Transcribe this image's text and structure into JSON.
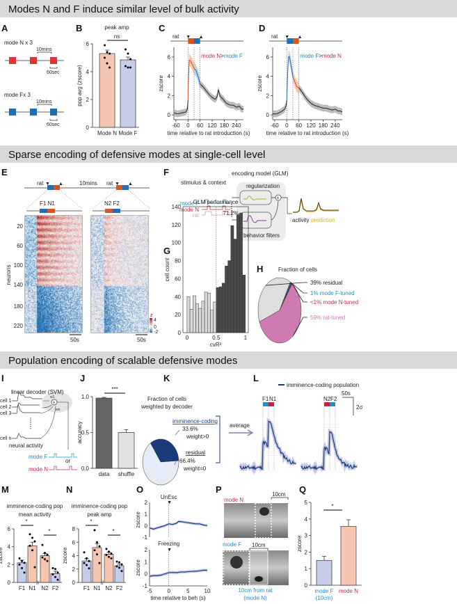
{
  "headers": [
    "Modes N and F induce similar level of bulk activity",
    "Sparse encoding of defensive modes at single-cell level",
    "Population encoding of scalable defensive modes"
  ],
  "panel_labels": [
    "A",
    "B",
    "C",
    "D",
    "E",
    "F",
    "G",
    "H",
    "I",
    "J",
    "K",
    "L",
    "M",
    "N",
    "O",
    "P",
    "Q"
  ],
  "colors": {
    "modeN": "#d9541e",
    "modeF": "#1f6fb4",
    "red": "#d62f3a",
    "barN": "#f6c5b1",
    "barF": "#c5cdea",
    "navy": "#1b3a7a",
    "pink": "#d07ab4",
    "gray": "#dedede",
    "header": "#d9d9d9"
  },
  "panelA": {
    "modeN_label": "mode N x 3",
    "modeF_label": "mode Fx 3",
    "interval": "10mins",
    "duration": "60sec"
  },
  "panelE": {
    "rat": "rat",
    "interval": "10mins",
    "pair1": "F1 N1",
    "pair2": "N2 F2",
    "scale": "50s",
    "ylabel": "neurons",
    "yticks": [
      "20",
      "60",
      "100",
      "140",
      "180",
      "220"
    ],
    "cbar_label": "z",
    "cbar_ticks": [
      "4",
      "0",
      "-2"
    ]
  },
  "panelF": {
    "title": "encoding model (GLM)",
    "stimulus": "stimulus & context",
    "regularization": "regularization",
    "modeF": "mode F",
    "modeN": "mode N",
    "rat": "rat",
    "filters": "behavior filters",
    "activity": "activity",
    "prediction": "prediction"
  },
  "panelI": {
    "title": "linear decoder (SVM)",
    "cells": [
      "cell 1",
      "cell 2",
      "cell 3",
      "cell n"
    ],
    "w1": "w1",
    "wn": "wn",
    "neural": "neural activity",
    "modeF": "mode F",
    "or": "or",
    "modeN": "mode N"
  },
  "panelK": {
    "average": "average"
  },
  "panelP": {
    "modeN": "mode N",
    "modeF": "mode F",
    "scale": "10cm",
    "caption1": "10cm from rat",
    "caption2": "(mode N)"
  },
  "chart_data": [
    {
      "id": "B",
      "type": "bar",
      "title": "peak amp",
      "categories": [
        "Mode N",
        "Mode F"
      ],
      "values": [
        5.3,
        4.85
      ],
      "sem": [
        0.25,
        0.2
      ],
      "points": [
        [
          5.9,
          5.4,
          5.3,
          5.0,
          4.6,
          4.3
        ],
        [
          5.6,
          5.3,
          4.9,
          4.4,
          4.3,
          4.3
        ]
      ],
      "ylabel": "pop avg (zscore)",
      "ylim": [
        0,
        6
      ],
      "yticks": [
        "0",
        "2",
        "4",
        "6"
      ],
      "significance": "ns"
    },
    {
      "id": "C",
      "type": "line",
      "xlabel": "time relative to rat introduction (s)",
      "ylabel": "zscore",
      "xlim": [
        -70,
        275
      ],
      "ylim": [
        -0.5,
        7
      ],
      "xticks": [
        "-60",
        "0",
        "60",
        "120",
        "180",
        "240"
      ],
      "yticks": [
        "0",
        "2",
        "4",
        "6"
      ],
      "stim_label": "rat",
      "legend": [
        "mode N",
        ">",
        "mode F"
      ],
      "x": [
        -70,
        -50,
        -30,
        -10,
        -3,
        0,
        3,
        6,
        12,
        20,
        30,
        40,
        50,
        60,
        75,
        90,
        105,
        120,
        135,
        145,
        150,
        160,
        175,
        190,
        210,
        225,
        240,
        255,
        265,
        275
      ],
      "y": [
        0.2,
        0.1,
        0.2,
        0.3,
        0.6,
        1.5,
        4.0,
        5.7,
        5.6,
        5.3,
        4.8,
        4.6,
        4.0,
        3.2,
        2.9,
        2.5,
        2.1,
        1.8,
        1.6,
        1.9,
        2.6,
        1.9,
        1.6,
        1.2,
        1.0,
        1.0,
        0.8,
        0.9,
        0.6,
        0.6
      ],
      "segments": [
        {
          "from": 0,
          "to": 30,
          "series": "mode N"
        },
        {
          "from": 30,
          "to": 60,
          "series": "mode F"
        }
      ]
    },
    {
      "id": "D",
      "type": "line",
      "xlabel": "time relative to rat introduction (s)",
      "ylabel": "zscore",
      "xlim": [
        -70,
        275
      ],
      "ylim": [
        -0.5,
        7
      ],
      "xticks": [
        "-60",
        "0",
        "60",
        "120",
        "180",
        "240"
      ],
      "yticks": [
        "0",
        "2",
        "4",
        "6"
      ],
      "stim_label": "rat",
      "legend": [
        "mode F",
        ">",
        "mode N"
      ],
      "x": [
        -70,
        -50,
        -30,
        -10,
        -3,
        0,
        4,
        8,
        12,
        20,
        30,
        40,
        50,
        60,
        75,
        90,
        105,
        120,
        135,
        150,
        165,
        180,
        195,
        210,
        225,
        240,
        255,
        265,
        275
      ],
      "y": [
        0.1,
        0.1,
        0.3,
        0.6,
        1.0,
        1.5,
        4.2,
        5.9,
        6.1,
        5.3,
        4.0,
        3.4,
        2.9,
        2.8,
        2.4,
        1.9,
        1.5,
        1.2,
        1.0,
        0.9,
        0.8,
        0.7,
        0.7,
        0.6,
        0.5,
        0.6,
        0.4,
        0.4,
        0.3
      ],
      "segments": [
        {
          "from": 0,
          "to": 30,
          "series": "mode F"
        },
        {
          "from": 30,
          "to": 60,
          "series": "mode N"
        }
      ]
    },
    {
      "id": "E",
      "type": "heatmap",
      "ylabel": "neurons",
      "n_neurons": 240
    },
    {
      "id": "G",
      "type": "bar",
      "title": "GLM performance",
      "xlabel": "cvR²",
      "ylabel": "cell count",
      "ylim": [
        0,
        140
      ],
      "xlim": [
        0,
        1
      ],
      "xticks": [
        "0",
        "0.5",
        "1"
      ],
      "yticks": [
        "0",
        "20",
        "40",
        "60",
        "80",
        "100",
        "120",
        "140"
      ],
      "threshold": 0.5,
      "annotation": "71.2%",
      "bin_width": 0.05,
      "values": [
        40,
        26,
        41,
        32,
        27,
        35,
        45,
        44,
        25,
        34,
        50,
        51,
        55,
        74,
        80,
        119,
        104,
        131,
        133,
        64
      ]
    },
    {
      "id": "H",
      "type": "pie",
      "title": "Fraction of cells",
      "slices": [
        {
          "label": "39% residual",
          "value": 39,
          "color": "#dedede"
        },
        {
          "label": "1% mode F-tuned",
          "value": 1,
          "color": "#1f6fb4"
        },
        {
          "label": "<1% mode N-tuned",
          "value": 0.6,
          "color": "#b0233a"
        },
        {
          "label": "59% rat-tuned",
          "value": 59.4,
          "color": "#d07ab4"
        }
      ]
    },
    {
      "id": "J",
      "type": "bar",
      "categories": [
        "data",
        "shuffle"
      ],
      "values": [
        0.98,
        0.5
      ],
      "sem": [
        0.01,
        0.04
      ],
      "ylabel": "accuracy",
      "ylim": [
        0,
        1
      ],
      "yticks": [
        "0.0",
        "0.5",
        "1.0"
      ],
      "significance": "***"
    },
    {
      "id": "K",
      "type": "pie",
      "title": [
        "Fraction of cells",
        "weighted by decoder"
      ],
      "slices": [
        {
          "label": "imminence-coding",
          "pct": "33.6%",
          "note": "weight>0",
          "value": 33.6,
          "color": "#1b3a7a"
        },
        {
          "label": "residual",
          "pct": "66.4%",
          "note": "weight=0",
          "value": 66.4,
          "color": "#e6ecf7"
        }
      ]
    },
    {
      "id": "L",
      "type": "line",
      "legend": "imminence-coding population",
      "pair1": [
        "F1",
        "N1"
      ],
      "pair2": [
        "N2",
        "F2"
      ],
      "scale_x": "50s",
      "scale_y": "2σ"
    },
    {
      "id": "M",
      "type": "bar",
      "title": [
        "imminence-coding pop",
        "mean activity"
      ],
      "categories": [
        "F1",
        "N1",
        "N2",
        "F2"
      ],
      "values": [
        2.2,
        4.1,
        3.0,
        1.0
      ],
      "sem": [
        0.3,
        0.4,
        0.25,
        0.25
      ],
      "points": [
        [
          2.7,
          2.4,
          2.2,
          2.0,
          1.6,
          1.1
        ],
        [
          5.4,
          5.0,
          4.6,
          4.1,
          3.6,
          1.7
        ],
        [
          4.2,
          3.3,
          3.1,
          2.8,
          2.6,
          2.4
        ],
        [
          1.6,
          1.5,
          1.1,
          0.9,
          0.6,
          0.3
        ]
      ],
      "ylabel": "zscore",
      "ylim": [
        0,
        6
      ],
      "yticks": [
        "0",
        "2",
        "4",
        "6"
      ],
      "significance": [
        "*",
        "*"
      ]
    },
    {
      "id": "N",
      "type": "bar",
      "title": [
        "imminence-coding pop",
        "peak amp"
      ],
      "categories": [
        "F1",
        "N1",
        "N2",
        "F2"
      ],
      "values": [
        3.2,
        5.2,
        4.2,
        2.5
      ],
      "sem": [
        0.35,
        0.6,
        0.3,
        0.25
      ],
      "points": [
        [
          4.5,
          3.6,
          3.2,
          2.9,
          2.6,
          2.1
        ],
        [
          7.8,
          6.0,
          5.4,
          4.8,
          4.2,
          2.9
        ],
        [
          5.0,
          4.6,
          4.3,
          4.1,
          3.8,
          3.6
        ],
        [
          3.1,
          3.0,
          2.7,
          2.4,
          2.2,
          1.7
        ]
      ],
      "ylabel": "zscore",
      "ylim": [
        0,
        8
      ],
      "yticks": [
        "0",
        "2",
        "4",
        "6",
        "8"
      ],
      "significance": [
        "*",
        "*"
      ]
    },
    {
      "id": "O",
      "type": "line",
      "xlabel": "time relative to beh (s)",
      "ylabel": "zscore",
      "xlim": [
        -5,
        10
      ],
      "ylim": [
        -1,
        2
      ],
      "xticks": [
        "-5",
        "0",
        "5",
        "10"
      ],
      "yticks": [
        "-1",
        "0",
        "1",
        "2"
      ],
      "series": [
        {
          "name": "UnEsc",
          "x": [
            -5,
            -4,
            -3,
            -2,
            -1,
            0,
            1,
            2,
            2.5,
            3,
            4,
            5,
            6,
            7,
            8,
            9,
            10
          ],
          "y": [
            -0.2,
            -0.3,
            -0.2,
            -0.1,
            0.0,
            0.15,
            0.1,
            0.2,
            0.35,
            0.35,
            0.3,
            0.25,
            0.2,
            0.15,
            0.15,
            0.05,
            0.0
          ]
        },
        {
          "name": "Freezing",
          "x": [
            -5,
            -4,
            -3,
            -2,
            -1,
            0,
            1,
            2,
            3,
            4,
            5,
            6,
            7,
            8,
            9,
            10
          ],
          "y": [
            -0.2,
            -0.15,
            -0.15,
            -0.1,
            0.0,
            0.1,
            0.12,
            0.1,
            0.15,
            0.15,
            0.18,
            0.2,
            0.22,
            0.25,
            0.3,
            0.3
          ]
        }
      ]
    },
    {
      "id": "Q",
      "type": "bar",
      "categories": [
        "mode F",
        "mode N"
      ],
      "sublabels": [
        "(10cm)",
        ""
      ],
      "values": [
        1.5,
        3.55
      ],
      "sem": [
        0.25,
        0.4
      ],
      "ylabel": "zscore",
      "ylim": [
        0,
        5
      ],
      "yticks": [
        "0",
        "1",
        "2",
        "3",
        "4",
        "5"
      ],
      "significance": "*"
    }
  ]
}
